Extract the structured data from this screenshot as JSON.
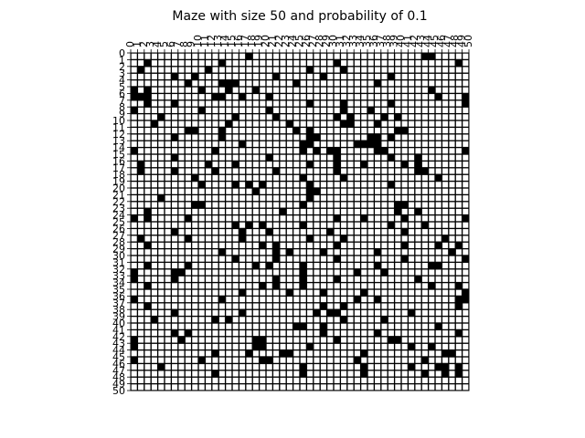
{
  "chart_data": {
    "type": "heatmap",
    "title": "Maze with size 50 and probability of 0.1",
    "size": 50,
    "probability": 0.1,
    "xlabel": "",
    "ylabel": "",
    "x_ticks": [
      0,
      1,
      2,
      3,
      4,
      5,
      6,
      7,
      8,
      9,
      10,
      11,
      12,
      13,
      14,
      15,
      16,
      17,
      18,
      19,
      20,
      21,
      22,
      23,
      24,
      25,
      26,
      27,
      28,
      29,
      30,
      31,
      32,
      33,
      34,
      35,
      36,
      37,
      38,
      39,
      40,
      41,
      42,
      43,
      44,
      45,
      46,
      47,
      48,
      49,
      50
    ],
    "y_ticks": [
      0,
      1,
      2,
      3,
      4,
      5,
      6,
      7,
      8,
      9,
      10,
      11,
      12,
      13,
      14,
      15,
      16,
      17,
      18,
      19,
      20,
      21,
      22,
      23,
      24,
      25,
      26,
      27,
      28,
      29,
      30,
      31,
      32,
      33,
      34,
      35,
      36,
      37,
      38,
      39,
      40,
      41,
      42,
      43,
      44,
      45,
      46,
      47,
      48,
      49,
      50
    ],
    "x_axis_position": "top",
    "grid": true,
    "colors": {
      "open": "#ffffff",
      "wall": "#000000"
    },
    "walls": [
      [
        0,
        17
      ],
      [
        0,
        43
      ],
      [
        0,
        44
      ],
      [
        1,
        2
      ],
      [
        1,
        13
      ],
      [
        1,
        30
      ],
      [
        1,
        48
      ],
      [
        2,
        1
      ],
      [
        2,
        11
      ],
      [
        2,
        26
      ],
      [
        2,
        31
      ],
      [
        3,
        6
      ],
      [
        3,
        9
      ],
      [
        3,
        21
      ],
      [
        3,
        28
      ],
      [
        3,
        38
      ],
      [
        4,
        8
      ],
      [
        4,
        13
      ],
      [
        4,
        14
      ],
      [
        4,
        15
      ],
      [
        4,
        24
      ],
      [
        4,
        36
      ],
      [
        5,
        0
      ],
      [
        5,
        2
      ],
      [
        5,
        10
      ],
      [
        5,
        14
      ],
      [
        5,
        18
      ],
      [
        5,
        44
      ],
      [
        6,
        0
      ],
      [
        6,
        1
      ],
      [
        6,
        2
      ],
      [
        6,
        12
      ],
      [
        6,
        13
      ],
      [
        6,
        16
      ],
      [
        6,
        20
      ],
      [
        6,
        45
      ],
      [
        6,
        49
      ],
      [
        7,
        2
      ],
      [
        7,
        6
      ],
      [
        7,
        26
      ],
      [
        7,
        31
      ],
      [
        7,
        38
      ],
      [
        7,
        49
      ],
      [
        8,
        0
      ],
      [
        8,
        10
      ],
      [
        8,
        20
      ],
      [
        8,
        31
      ],
      [
        8,
        35
      ],
      [
        9,
        4
      ],
      [
        9,
        15
      ],
      [
        9,
        21
      ],
      [
        9,
        30
      ],
      [
        9,
        32
      ],
      [
        9,
        37
      ],
      [
        9,
        39
      ],
      [
        10,
        3
      ],
      [
        10,
        14
      ],
      [
        10,
        23
      ],
      [
        10,
        31
      ],
      [
        10,
        32
      ],
      [
        10,
        36
      ],
      [
        11,
        8
      ],
      [
        11,
        9
      ],
      [
        11,
        13
      ],
      [
        11,
        24
      ],
      [
        11,
        26
      ],
      [
        11,
        39
      ],
      [
        11,
        40
      ],
      [
        12,
        6
      ],
      [
        12,
        13
      ],
      [
        12,
        26
      ],
      [
        12,
        27
      ],
      [
        12,
        35
      ],
      [
        12,
        36
      ],
      [
        12,
        38
      ],
      [
        13,
        16
      ],
      [
        13,
        25
      ],
      [
        13,
        26
      ],
      [
        13,
        33
      ],
      [
        13,
        34
      ],
      [
        13,
        35
      ],
      [
        13,
        36
      ],
      [
        14,
        0
      ],
      [
        14,
        12
      ],
      [
        14,
        25
      ],
      [
        14,
        27
      ],
      [
        14,
        29
      ],
      [
        14,
        30
      ],
      [
        14,
        36
      ],
      [
        14,
        37
      ],
      [
        14,
        49
      ],
      [
        15,
        6
      ],
      [
        15,
        20
      ],
      [
        15,
        30
      ],
      [
        15,
        38
      ],
      [
        15,
        42
      ],
      [
        16,
        1
      ],
      [
        16,
        11
      ],
      [
        16,
        15
      ],
      [
        16,
        26
      ],
      [
        16,
        30
      ],
      [
        16,
        34
      ],
      [
        16,
        40
      ],
      [
        16,
        42
      ],
      [
        17,
        1
      ],
      [
        17,
        6
      ],
      [
        17,
        12
      ],
      [
        17,
        21
      ],
      [
        17,
        30
      ],
      [
        17,
        42
      ],
      [
        17,
        43
      ],
      [
        18,
        9
      ],
      [
        18,
        25
      ],
      [
        18,
        31
      ],
      [
        18,
        45
      ],
      [
        19,
        10
      ],
      [
        19,
        15
      ],
      [
        19,
        17
      ],
      [
        19,
        19
      ],
      [
        19,
        26
      ],
      [
        19,
        38
      ],
      [
        20,
        18
      ],
      [
        20,
        26
      ],
      [
        20,
        27
      ],
      [
        21,
        4
      ],
      [
        21,
        26
      ],
      [
        22,
        9
      ],
      [
        22,
        10
      ],
      [
        22,
        25
      ],
      [
        22,
        39
      ],
      [
        22,
        40
      ],
      [
        23,
        2
      ],
      [
        23,
        22
      ],
      [
        23,
        39
      ],
      [
        23,
        42
      ],
      [
        24,
        0
      ],
      [
        24,
        2
      ],
      [
        24,
        8
      ],
      [
        24,
        30
      ],
      [
        24,
        34
      ],
      [
        24,
        40
      ],
      [
        24,
        49
      ],
      [
        25,
        15
      ],
      [
        25,
        17
      ],
      [
        25,
        19
      ],
      [
        25,
        25
      ],
      [
        25,
        38
      ],
      [
        25,
        43
      ],
      [
        26,
        6
      ],
      [
        26,
        16
      ],
      [
        26,
        20
      ],
      [
        26,
        29
      ],
      [
        26,
        40
      ],
      [
        27,
        1
      ],
      [
        27,
        8
      ],
      [
        27,
        16
      ],
      [
        27,
        26
      ],
      [
        27,
        31
      ],
      [
        27,
        46
      ],
      [
        28,
        2
      ],
      [
        28,
        19
      ],
      [
        28,
        21
      ],
      [
        28,
        30
      ],
      [
        28,
        40
      ],
      [
        28,
        45
      ],
      [
        28,
        48
      ],
      [
        29,
        13
      ],
      [
        29,
        21
      ],
      [
        29,
        23
      ],
      [
        29,
        28
      ],
      [
        29,
        36
      ],
      [
        29,
        47
      ],
      [
        30,
        15
      ],
      [
        30,
        21
      ],
      [
        30,
        30
      ],
      [
        30,
        40
      ],
      [
        30,
        49
      ],
      [
        31,
        2
      ],
      [
        31,
        8
      ],
      [
        31,
        18
      ],
      [
        31,
        20
      ],
      [
        31,
        25
      ],
      [
        31,
        36
      ],
      [
        31,
        44
      ],
      [
        31,
        45
      ],
      [
        32,
        0
      ],
      [
        32,
        6
      ],
      [
        32,
        7
      ],
      [
        32,
        25
      ],
      [
        32,
        33
      ],
      [
        32,
        37
      ],
      [
        33,
        0
      ],
      [
        33,
        6
      ],
      [
        33,
        21
      ],
      [
        33,
        25
      ],
      [
        33,
        30
      ],
      [
        33,
        42
      ],
      [
        34,
        2
      ],
      [
        34,
        19
      ],
      [
        34,
        21
      ],
      [
        34,
        25
      ],
      [
        34,
        44
      ],
      [
        34,
        48
      ],
      [
        35,
        16
      ],
      [
        35,
        23
      ],
      [
        35,
        28
      ],
      [
        35,
        34
      ],
      [
        35,
        49
      ],
      [
        36,
        0
      ],
      [
        36,
        13
      ],
      [
        36,
        33
      ],
      [
        36,
        36
      ],
      [
        36,
        48
      ],
      [
        36,
        49
      ],
      [
        37,
        2
      ],
      [
        37,
        28
      ],
      [
        37,
        31
      ],
      [
        37,
        48
      ],
      [
        38,
        6
      ],
      [
        38,
        16
      ],
      [
        38,
        27
      ],
      [
        38,
        29
      ],
      [
        38,
        30
      ],
      [
        38,
        41
      ],
      [
        39,
        3
      ],
      [
        39,
        12
      ],
      [
        39,
        14
      ],
      [
        39,
        31
      ],
      [
        39,
        37
      ],
      [
        40,
        24
      ],
      [
        40,
        25
      ],
      [
        40,
        28
      ],
      [
        40,
        45
      ],
      [
        41,
        6
      ],
      [
        41,
        8
      ],
      [
        41,
        28
      ],
      [
        41,
        36
      ],
      [
        41,
        48
      ],
      [
        42,
        0
      ],
      [
        42,
        7
      ],
      [
        42,
        18
      ],
      [
        42,
        19
      ],
      [
        42,
        30
      ],
      [
        42,
        38
      ],
      [
        42,
        39
      ],
      [
        43,
        0
      ],
      [
        43,
        18
      ],
      [
        43,
        19
      ],
      [
        43,
        26
      ],
      [
        43,
        41
      ],
      [
        43,
        44
      ],
      [
        44,
        12
      ],
      [
        44,
        17
      ],
      [
        44,
        22
      ],
      [
        44,
        23
      ],
      [
        44,
        34
      ],
      [
        44,
        46
      ],
      [
        44,
        47
      ],
      [
        45,
        0
      ],
      [
        45,
        10
      ],
      [
        45,
        19
      ],
      [
        45,
        20
      ],
      [
        45,
        33
      ],
      [
        45,
        43
      ],
      [
        46,
        4
      ],
      [
        46,
        25
      ],
      [
        46,
        34
      ],
      [
        46,
        41
      ],
      [
        46,
        45
      ],
      [
        46,
        46
      ],
      [
        46,
        48
      ],
      [
        47,
        12
      ],
      [
        47,
        25
      ],
      [
        47,
        34
      ],
      [
        47,
        43
      ],
      [
        47,
        46
      ],
      [
        47,
        48
      ]
    ]
  }
}
